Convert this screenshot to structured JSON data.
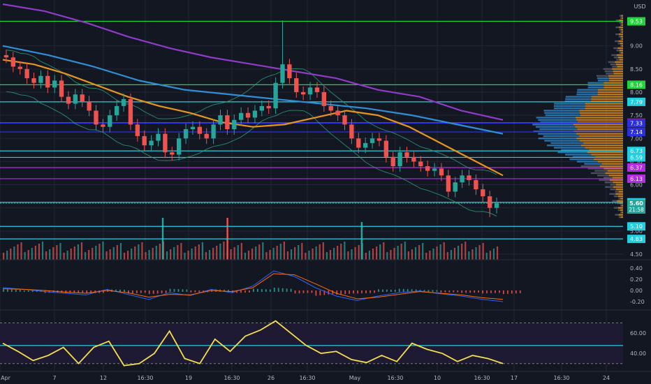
{
  "chart_data": {
    "type": "candlestick",
    "currency": "USD",
    "colors": {
      "background": "#131722",
      "up": "#26a69a",
      "down": "#ef5350",
      "grid": "#232733",
      "axis_text": "#b2b5be",
      "ma_orange": "#e8951e",
      "ma_blue": "#2f8fd6",
      "ma_purple": "#8e3cc7",
      "bollinger": "#2b9e78",
      "rsi_line": "#f5e04b",
      "macd_line": "#2962ff",
      "signal_line": "#ff6d00",
      "rsi_band": "#1f1a33"
    },
    "x_ticks": [
      "Apr",
      "7",
      "12",
      "16:30",
      "19",
      "16:30",
      "26",
      "16:30",
      "May",
      "16:30",
      "10",
      "16:30",
      "17",
      "16:30",
      "24"
    ],
    "price_axis": {
      "min": 4.5,
      "max": 9.9,
      "ticks": [
        "9.00",
        "8.50",
        "8.00",
        "7.50",
        "7.00",
        "6.50",
        "6.00",
        "5.50",
        "5.00",
        "4.50"
      ]
    },
    "horizontal_levels": [
      {
        "value": 9.53,
        "label": "9.53",
        "color": "#22d33a"
      },
      {
        "value": 8.16,
        "label": "8.16",
        "color": "#22d33a"
      },
      {
        "value": 7.79,
        "label": "7.79",
        "color": "#22cfe0"
      },
      {
        "value": 7.34,
        "label": "7.34",
        "color": "#f5222d"
      },
      {
        "value": 7.33,
        "label": "7.33",
        "color": "#2b2fe0"
      },
      {
        "value": 7.14,
        "label": "7.14",
        "color": "#2b2fe0"
      },
      {
        "value": 6.73,
        "label": "6.73",
        "color": "#22cfe0"
      },
      {
        "value": 6.59,
        "label": "6.59",
        "color": "#22cfe0"
      },
      {
        "value": 6.37,
        "label": "6.37",
        "color": "#b22ee0"
      },
      {
        "value": 6.13,
        "label": "6.13",
        "color": "#b22ee0"
      },
      {
        "value": 5.62,
        "label": "5.62",
        "color": "#22cfe0"
      },
      {
        "value": 5.1,
        "label": "5.10",
        "color": "#22cfe0"
      },
      {
        "value": 4.83,
        "label": "4.83",
        "color": "#22cfe0"
      }
    ],
    "last_price": {
      "value": 5.6,
      "label": "5.60",
      "countdown": "21:58"
    },
    "close_series": [
      8.75,
      8.55,
      8.5,
      8.3,
      8.2,
      8.35,
      8.1,
      8.25,
      7.9,
      7.75,
      7.95,
      7.8,
      7.6,
      7.3,
      7.25,
      7.5,
      7.7,
      7.85,
      7.3,
      7.05,
      6.85,
      6.95,
      7.1,
      6.7,
      6.65,
      7.0,
      7.2,
      7.25,
      7.1,
      7.0,
      7.3,
      7.5,
      7.2,
      7.4,
      7.55,
      7.45,
      7.6,
      7.7,
      7.65,
      8.2,
      8.6,
      8.3,
      8.0,
      7.95,
      8.1,
      8.0,
      7.7,
      7.6,
      7.5,
      7.3,
      7.0,
      6.8,
      6.9,
      7.0,
      6.95,
      6.6,
      6.4,
      6.7,
      6.6,
      6.5,
      6.4,
      6.3,
      6.35,
      6.2,
      5.85,
      6.05,
      6.2,
      6.1,
      5.9,
      5.75,
      5.5,
      5.6
    ],
    "ma_orange": [
      8.7,
      8.6,
      8.4,
      8.15,
      7.9,
      7.7,
      7.55,
      7.35,
      7.25,
      7.3,
      7.45,
      7.6,
      7.5,
      7.25,
      6.9,
      6.55,
      6.2
    ],
    "ma_blue": [
      9.0,
      8.8,
      8.55,
      8.25,
      8.05,
      7.95,
      7.85,
      7.75,
      7.65,
      7.5,
      7.3,
      7.1
    ],
    "ma_purple": [
      9.9,
      9.75,
      9.5,
      9.2,
      8.95,
      8.75,
      8.6,
      8.45,
      8.3,
      8.05,
      7.9,
      7.6,
      7.4
    ],
    "volume_spikes": [
      {
        "position": 0.32,
        "value": 1.0
      },
      {
        "position": 0.45,
        "value": 1.0
      },
      {
        "position": 0.72,
        "value": 0.9
      }
    ],
    "macd_panel": {
      "ticks": [
        "0.40",
        "0.20",
        "0.00",
        "-0.20"
      ],
      "min": -0.3,
      "max": 0.5,
      "macd": [
        0.05,
        0.02,
        -0.02,
        -0.05,
        -0.08,
        0.02,
        -0.07,
        -0.16,
        -0.04,
        -0.09,
        0.02,
        -0.04,
        0.08,
        0.35,
        0.25,
        0.05,
        -0.1,
        -0.18,
        -0.1,
        -0.04,
        -0.01,
        -0.06,
        -0.1,
        -0.16,
        -0.2
      ],
      "signal": [
        0.03,
        0.02,
        0.0,
        -0.03,
        -0.05,
        0.0,
        -0.04,
        -0.12,
        -0.07,
        -0.08,
        0.0,
        -0.02,
        0.05,
        0.3,
        0.28,
        0.12,
        -0.05,
        -0.15,
        -0.12,
        -0.07,
        -0.02,
        -0.05,
        -0.08,
        -0.13,
        -0.16
      ]
    },
    "rsi_panel": {
      "ticks": [
        "60.00",
        "40.00"
      ],
      "min": 25,
      "max": 80,
      "level_label": "47.77",
      "level_value": 47.77,
      "values": [
        50,
        42,
        33,
        38,
        46,
        30,
        46,
        52,
        28,
        30,
        40,
        62,
        35,
        30,
        54,
        42,
        57,
        63,
        72,
        60,
        48,
        40,
        42,
        34,
        31,
        38,
        32,
        50,
        44,
        40,
        32,
        38,
        35,
        30
      ]
    }
  }
}
